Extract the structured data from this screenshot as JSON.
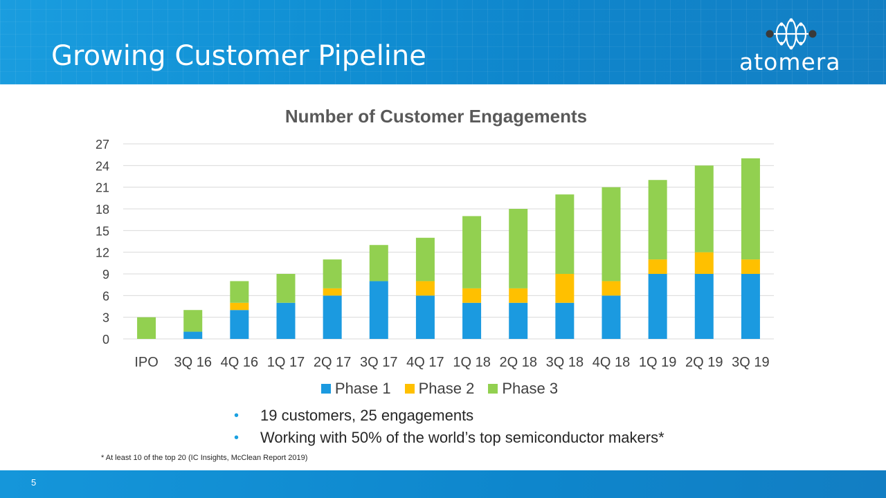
{
  "slide": {
    "title": "Growing Customer Pipeline",
    "logo_text": "atomera",
    "page_number": "5",
    "footnote": "* At least 10 of the top 20 (IC Insights, McClean Report 2019)",
    "bullets": [
      "19 customers, 25 engagements",
      "Working with 50% of the world’s top semiconductor makers*"
    ]
  },
  "colors": {
    "header": "#1190d4",
    "phase1": "#1b9ae0",
    "phase2": "#ffc000",
    "phase3": "#92d050"
  },
  "chart_data": {
    "type": "bar",
    "stacked": true,
    "title": "Number of Customer Engagements",
    "categories": [
      "IPO",
      "3Q 16",
      "4Q 16",
      "1Q 17",
      "2Q 17",
      "3Q 17",
      "4Q 17",
      "1Q 18",
      "2Q 18",
      "3Q 18",
      "4Q 18",
      "1Q 19",
      "2Q 19",
      "3Q 19"
    ],
    "series": [
      {
        "name": "Phase 1",
        "color": "#1b9ae0",
        "values": [
          0,
          1,
          4,
          5,
          6,
          8,
          6,
          5,
          5,
          5,
          6,
          9,
          9,
          9
        ]
      },
      {
        "name": "Phase 2",
        "color": "#ffc000",
        "values": [
          0,
          0,
          1,
          0,
          1,
          0,
          2,
          2,
          2,
          4,
          2,
          2,
          3,
          2
        ]
      },
      {
        "name": "Phase 3",
        "color": "#92d050",
        "values": [
          3,
          3,
          3,
          4,
          4,
          5,
          6,
          10,
          11,
          11,
          13,
          11,
          12,
          14
        ]
      }
    ],
    "yticks": [
      0,
      3,
      6,
      9,
      12,
      15,
      18,
      21,
      24,
      27
    ],
    "ylim": [
      0,
      27
    ],
    "grid": true,
    "legend": "bottom"
  }
}
